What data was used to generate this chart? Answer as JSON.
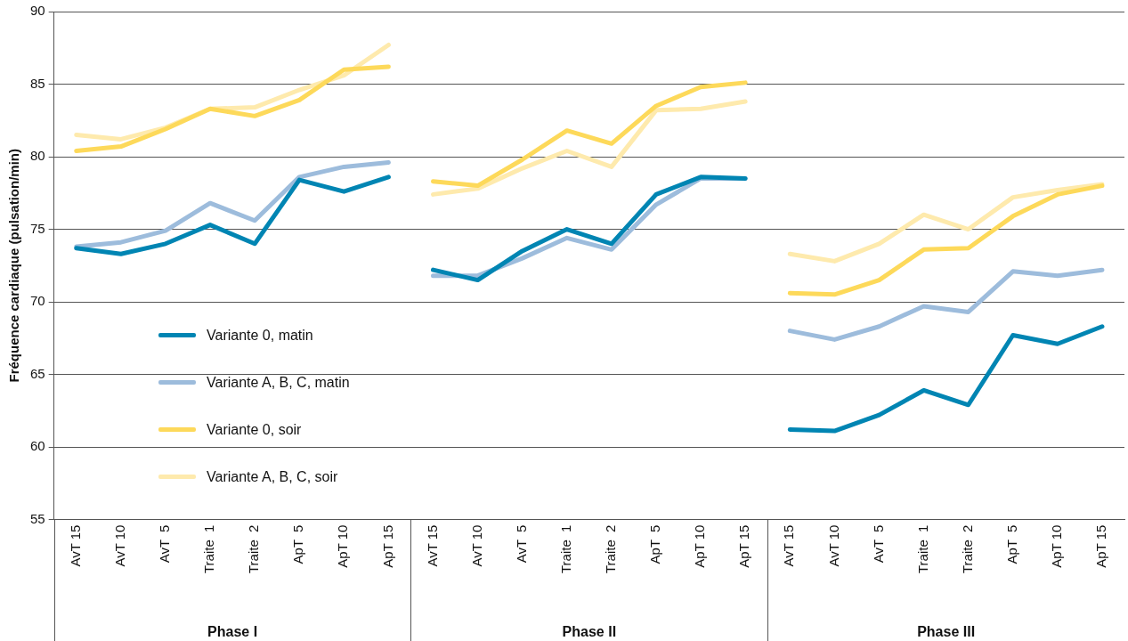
{
  "chart_data": {
    "type": "line",
    "ylabel": "Fréquence cardiaque (pulsation/min)",
    "categories": [
      "AvT 15",
      "AvT 10",
      "AvT  5",
      "Traite  1",
      "Traite  2",
      "ApT  5",
      "ApT 10",
      "ApT 15",
      "AvT 15",
      "AvT 10",
      "AvT  5",
      "Traite  1",
      "Traite  2",
      "ApT  5",
      "ApT 10",
      "ApT 15",
      "AvT 15",
      "AvT 10",
      "AvT  5",
      "Traite  1",
      "Traite  2",
      "ApT  5",
      "ApT 10",
      "ApT 15"
    ],
    "series": [
      {
        "name": "Variante 0, matin",
        "color": "#0085b3",
        "values": [
          73.7,
          73.3,
          74.0,
          75.3,
          74.0,
          78.4,
          77.6,
          78.6,
          72.2,
          71.5,
          73.5,
          75.0,
          74.0,
          77.4,
          78.6,
          78.5,
          61.2,
          61.1,
          62.2,
          63.9,
          62.9,
          67.7,
          67.1,
          68.3
        ]
      },
      {
        "name": "Variante A, B, C, matin",
        "color": "#9dbcdc",
        "values": [
          73.8,
          74.1,
          74.9,
          76.8,
          75.6,
          78.6,
          79.3,
          79.6,
          71.8,
          71.8,
          73.0,
          74.4,
          73.6,
          76.7,
          78.5,
          78.5,
          68.0,
          67.4,
          68.3,
          69.7,
          69.3,
          72.1,
          71.8,
          72.2
        ]
      },
      {
        "name": "Variante 0, soir",
        "color": "#fdd95a",
        "values": [
          80.4,
          80.7,
          81.9,
          83.3,
          82.8,
          83.9,
          86.0,
          86.2,
          78.3,
          78.0,
          79.8,
          81.8,
          80.9,
          83.5,
          84.8,
          85.1,
          70.6,
          70.5,
          71.5,
          73.6,
          73.7,
          75.9,
          77.4,
          78.0
        ]
      },
      {
        "name": "Variante A, B, C, soir",
        "color": "#feeaad",
        "values": [
          81.5,
          81.2,
          82.0,
          83.3,
          83.4,
          84.6,
          85.6,
          87.7,
          77.4,
          77.8,
          79.2,
          80.4,
          79.3,
          83.2,
          83.3,
          83.8,
          73.3,
          72.8,
          74.0,
          76.0,
          75.0,
          77.2,
          77.7,
          78.1
        ]
      }
    ],
    "ylim": [
      55,
      90
    ],
    "yticks": [
      55,
      60,
      65,
      70,
      75,
      80,
      85,
      90
    ],
    "grid": "y",
    "legend": "bottom left",
    "marker": "none",
    "line_style": "solid",
    "annotations": [
      "Phase I",
      "Phase II",
      "Phase III"
    ]
  }
}
